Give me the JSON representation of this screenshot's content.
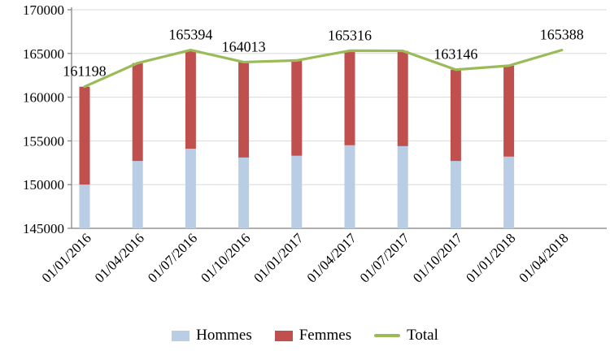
{
  "chart_data": {
    "type": "bar",
    "subtype": "stacked-columns-with-total-line",
    "title": "",
    "xlabel": "",
    "ylabel": "",
    "categories": [
      "01/01/2016",
      "01/04/2016",
      "01/07/2016",
      "01/10/2016",
      "01/01/2017",
      "01/04/2017",
      "01/07/2017",
      "01/10/2017",
      "01/01/2018",
      "01/04/2018"
    ],
    "series": [
      {
        "name": "Hommes",
        "kind": "bar",
        "color": "#b9cde5",
        "segment_top_values": [
          150000,
          152700,
          154100,
          153100,
          153300,
          154500,
          154400,
          152700,
          153200,
          null
        ]
      },
      {
        "name": "Femmes",
        "kind": "bar",
        "color": "#c0504d",
        "segment_top_values": [
          161198,
          163900,
          165394,
          164013,
          164200,
          165316,
          165300,
          163146,
          163600,
          null
        ]
      },
      {
        "name": "Total",
        "kind": "line",
        "color": "#9bbb59",
        "values": [
          161198,
          163900,
          165394,
          164013,
          164200,
          165316,
          165300,
          163146,
          163600,
          165388
        ]
      }
    ],
    "data_labels": [
      {
        "category": "01/01/2016",
        "text": "161198"
      },
      {
        "category": "01/07/2016",
        "text": "165394"
      },
      {
        "category": "01/10/2016",
        "text": "164013"
      },
      {
        "category": "01/04/2017",
        "text": "165316"
      },
      {
        "category": "01/10/2017",
        "text": "163146"
      },
      {
        "category": "01/04/2018",
        "text": "165388"
      }
    ],
    "ylim": [
      145000,
      170000
    ],
    "ytick_interval": 5000,
    "yticks": [
      145000,
      150000,
      155000,
      160000,
      165000,
      170000
    ],
    "grid": true,
    "legend_position": "bottom",
    "axis_color": "#7f7f7f",
    "grid_color": "#d9d9d9"
  }
}
